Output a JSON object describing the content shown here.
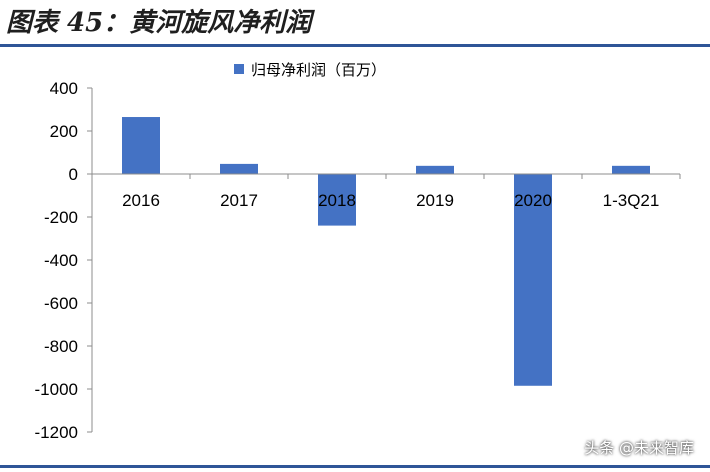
{
  "header": {
    "title": "图表 45：黄河旋风净利润"
  },
  "watermark": "头条 @未来智库",
  "colors": {
    "bar": "#4472c4",
    "rule": "#2f5597"
  },
  "chart_data": {
    "type": "bar",
    "categories": [
      "2016",
      "2017",
      "2018",
      "2019",
      "2020",
      "1-3Q21"
    ],
    "series": [
      {
        "name": "归母净利润（百万）",
        "values": [
          265,
          47,
          -240,
          38,
          -985,
          38
        ]
      }
    ],
    "ylim": [
      -1200,
      400
    ],
    "yticks": [
      "400",
      "200",
      "0",
      "-200",
      "-400",
      "-600",
      "-800",
      "-1000",
      "-1200"
    ],
    "legend_position": "top-center",
    "grid": false
  }
}
